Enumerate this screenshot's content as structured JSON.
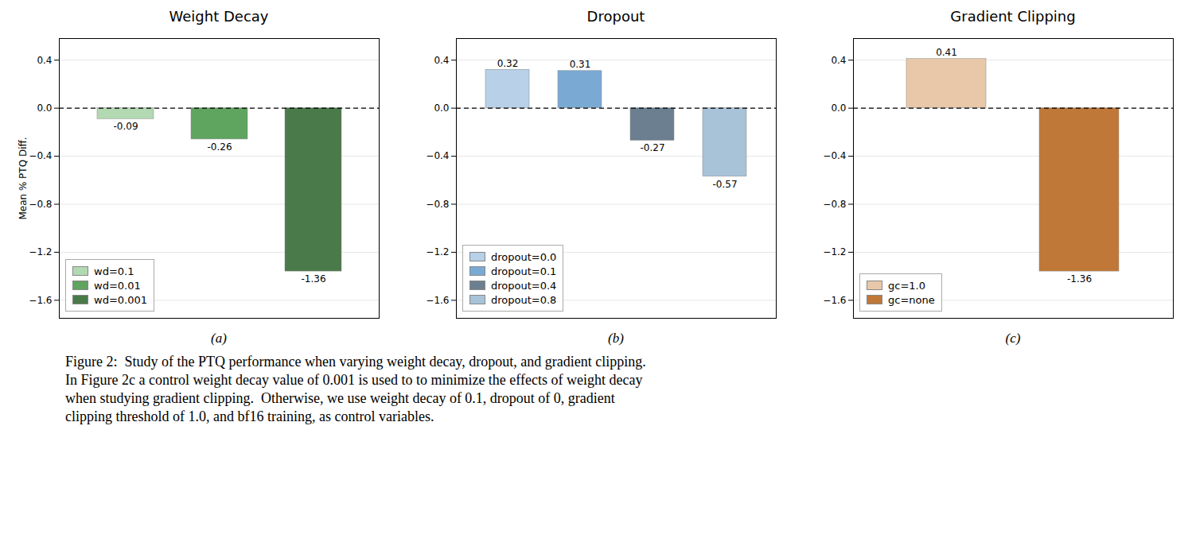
{
  "chart_data": [
    {
      "type": "bar",
      "title": "Weight Decay",
      "categories": [
        "wd=0.1",
        "wd=0.01",
        "wd=0.001"
      ],
      "values": [
        -0.09,
        -0.26,
        -1.36
      ],
      "colors": [
        "#b2d9b2",
        "#5fa45f",
        "#4a7a4a"
      ],
      "ylabel": "Mean % PTQ Diff.",
      "xlabel": "(a)",
      "ylim": [
        -1.75,
        0.58
      ],
      "yticks": [
        0.4,
        {
          "value": 0,
          "label": "0.0"
        },
        {
          "value": -0.4,
          "label": "−0.4"
        },
        {
          "value": -0.8,
          "label": "−0.8"
        },
        {
          "value": -1.2,
          "label": "−1.2"
        },
        {
          "value": -1.6,
          "label": "−1.6"
        }
      ],
      "grid": true,
      "legend": "lower left",
      "data_labels": true,
      "tick_labels": "y"
    },
    {
      "type": "bar",
      "title": "Dropout",
      "categories": [
        "dropout=0.0",
        "dropout=0.1",
        "dropout=0.4",
        "dropout=0.8"
      ],
      "values": [
        0.32,
        0.31,
        -0.27,
        -0.57
      ],
      "colors": [
        "#b8d0e8",
        "#7aaad4",
        "#6b7f90",
        "#a8c2d8"
      ],
      "xlabel": "(b)",
      "ylim": [
        -1.75,
        0.58
      ],
      "yticks": [
        0.4,
        {
          "value": 0,
          "label": "0.0"
        },
        {
          "value": -0.4,
          "label": "−0.4"
        },
        {
          "value": -0.8,
          "label": "−0.8"
        },
        {
          "value": -1.2,
          "label": "−1.2"
        },
        {
          "value": -1.6,
          "label": "−1.6"
        }
      ],
      "grid": true,
      "legend": "lower left",
      "data_labels": true,
      "tick_labels": "y"
    },
    {
      "type": "bar",
      "title": "Gradient Clipping",
      "categories": [
        "gc=1.0",
        "gc=none"
      ],
      "values": [
        0.41,
        -1.36
      ],
      "colors": [
        "#e8c8a8",
        "#c07838"
      ],
      "xlabel": "(c)",
      "ylim": [
        -1.75,
        0.58
      ],
      "yticks": [
        0.4,
        {
          "value": 0,
          "label": "0.0"
        },
        {
          "value": -0.4,
          "label": "−0.4"
        },
        {
          "value": -0.8,
          "label": "−0.8"
        },
        {
          "value": -1.2,
          "label": "−1.2"
        },
        {
          "value": -1.6,
          "label": "−1.6"
        }
      ],
      "grid": true,
      "legend": "lower left",
      "data_labels": true,
      "tick_labels": "y"
    }
  ],
  "caption": [
    "Figure 2:  Study of the PTQ performance when varying weight decay, dropout, and gradient clipping.",
    "In Figure 2c a control weight decay value of 0.001 is used to to minimize the effects of weight decay",
    "when studying gradient clipping.  Otherwise, we use weight decay of 0.1, dropout of 0, gradient",
    "clipping threshold of 1.0, and bf16 training, as control variables."
  ]
}
